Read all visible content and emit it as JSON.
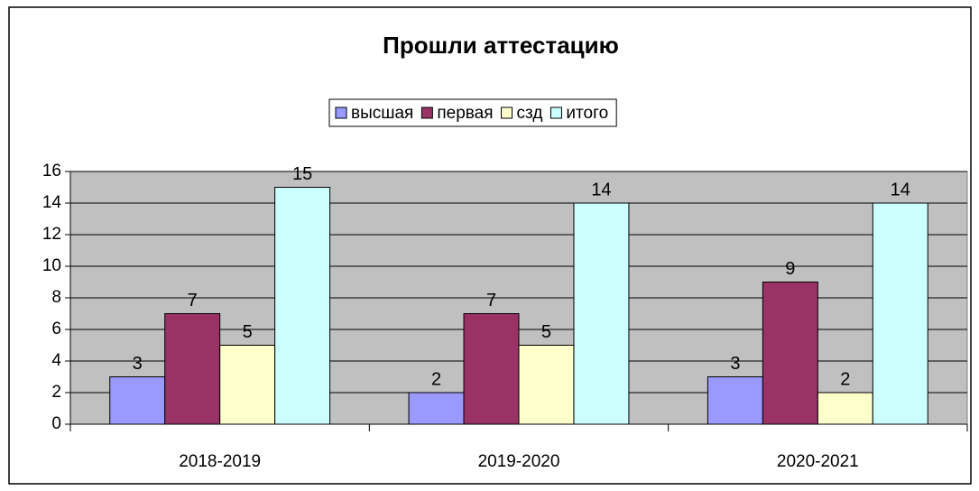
{
  "chart_data": {
    "type": "bar",
    "title": "Прошли аттестацию",
    "categories": [
      "2018-2019",
      "2019-2020",
      "2020-2021"
    ],
    "series": [
      {
        "name": "высшая",
        "color": "#9999ff",
        "values": [
          3,
          2,
          3
        ]
      },
      {
        "name": "первая",
        "color": "#993366",
        "values": [
          7,
          7,
          9
        ]
      },
      {
        "name": "сзд",
        "color": "#ffffcc",
        "values": [
          5,
          5,
          2
        ]
      },
      {
        "name": "итого",
        "color": "#ccffff",
        "values": [
          15,
          14,
          14
        ]
      }
    ],
    "ylim": [
      0,
      16
    ],
    "yticks": [
      0,
      2,
      4,
      6,
      8,
      10,
      12,
      14,
      16
    ],
    "grid": true,
    "legend": "top",
    "plot_background": "#c0c0c0"
  }
}
